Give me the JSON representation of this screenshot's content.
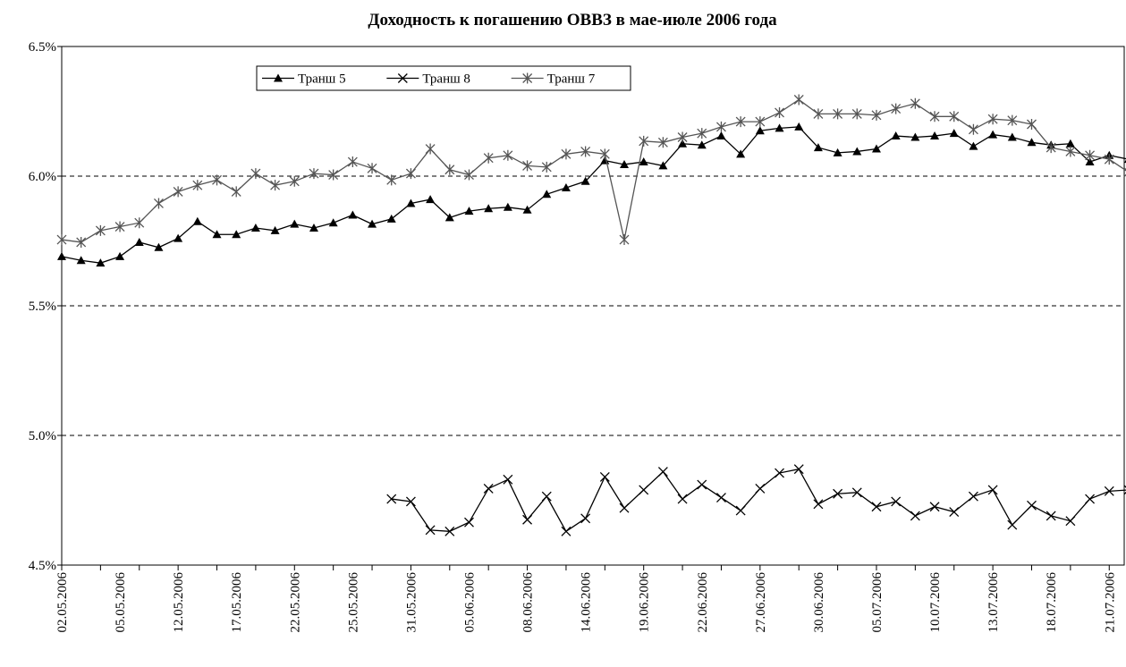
{
  "chart_data": {
    "type": "line",
    "title": "Доходность к погашению ОВВЗ в мае-июле 2006 года",
    "categories": [
      "02.05.2006",
      null,
      null,
      "05.05.2006",
      null,
      null,
      "12.05.2006",
      null,
      null,
      "17.05.2006",
      null,
      null,
      "22.05.2006",
      null,
      null,
      "25.05.2006",
      null,
      null,
      "31.05.2006",
      null,
      null,
      "05.06.2006",
      null,
      null,
      "08.06.2006",
      null,
      null,
      "14.06.2006",
      null,
      null,
      "19.06.2006",
      null,
      null,
      "22.06.2006",
      null,
      null,
      "27.06.2006",
      null,
      null,
      "30.06.2006",
      null,
      null,
      "05.07.2006",
      null,
      null,
      "10.07.2006",
      null,
      null,
      "13.07.2006",
      null,
      null,
      "18.07.2006",
      null,
      null,
      "21.07.2006",
      null
    ],
    "series": [
      {
        "name": "Транш 5",
        "color": "#000000",
        "marker": "triangle",
        "values": [
          5.69,
          5.675,
          5.665,
          5.69,
          5.745,
          5.725,
          5.76,
          5.825,
          5.775,
          5.775,
          5.8,
          5.79,
          5.815,
          5.8,
          5.82,
          5.85,
          5.815,
          5.835,
          5.895,
          5.91,
          5.84,
          5.865,
          5.875,
          5.88,
          5.87,
          5.93,
          5.955,
          5.98,
          6.06,
          6.045,
          6.055,
          6.04,
          6.125,
          6.12,
          6.155,
          6.085,
          6.175,
          6.185,
          6.19,
          6.11,
          6.09,
          6.095,
          6.105,
          6.155,
          6.15,
          6.155,
          6.165,
          6.115,
          6.16,
          6.15,
          6.13,
          6.12,
          6.125,
          6.055,
          6.08,
          6.065
        ]
      },
      {
        "name": "Транш 8",
        "color": "#000000",
        "marker": "x",
        "values": [
          null,
          null,
          null,
          null,
          null,
          null,
          null,
          null,
          null,
          null,
          null,
          null,
          null,
          null,
          null,
          null,
          null,
          4.755,
          4.745,
          4.635,
          4.63,
          4.665,
          4.795,
          4.83,
          4.675,
          4.765,
          4.63,
          4.68,
          4.84,
          4.72,
          4.79,
          4.86,
          4.755,
          4.81,
          4.76,
          4.71,
          4.795,
          4.855,
          4.87,
          4.735,
          4.775,
          4.78,
          4.725,
          4.745,
          4.69,
          4.725,
          4.705,
          4.765,
          4.79,
          4.655,
          4.73,
          4.69,
          4.67,
          4.755,
          4.785,
          4.79
        ]
      },
      {
        "name": "Транш 7",
        "color": "#555555",
        "marker": "star",
        "values": [
          5.755,
          5.745,
          5.79,
          5.805,
          5.82,
          5.895,
          5.94,
          5.965,
          5.985,
          5.94,
          6.01,
          5.965,
          5.98,
          6.01,
          6.005,
          6.055,
          6.03,
          5.985,
          6.01,
          6.105,
          6.025,
          6.005,
          6.07,
          6.08,
          6.04,
          6.035,
          6.085,
          6.095,
          6.085,
          5.755,
          6.135,
          6.13,
          6.15,
          6.165,
          6.19,
          6.21,
          6.21,
          6.245,
          6.295,
          6.24,
          6.24,
          6.24,
          6.235,
          6.26,
          6.28,
          6.23,
          6.23,
          6.18,
          6.22,
          6.215,
          6.2,
          6.11,
          6.095,
          6.08,
          6.065,
          6.015
        ]
      }
    ],
    "ylim": [
      4.5,
      6.5
    ],
    "yticks": [
      {
        "value": 4.5,
        "label": "4.5%"
      },
      {
        "value": 5,
        "label": "5.0%"
      },
      {
        "value": 5.5,
        "label": "5.5%"
      },
      {
        "value": 6,
        "label": "6.0%"
      },
      {
        "value": 6.5,
        "label": "6.5%"
      }
    ],
    "grid": true,
    "legend": "top-left"
  }
}
